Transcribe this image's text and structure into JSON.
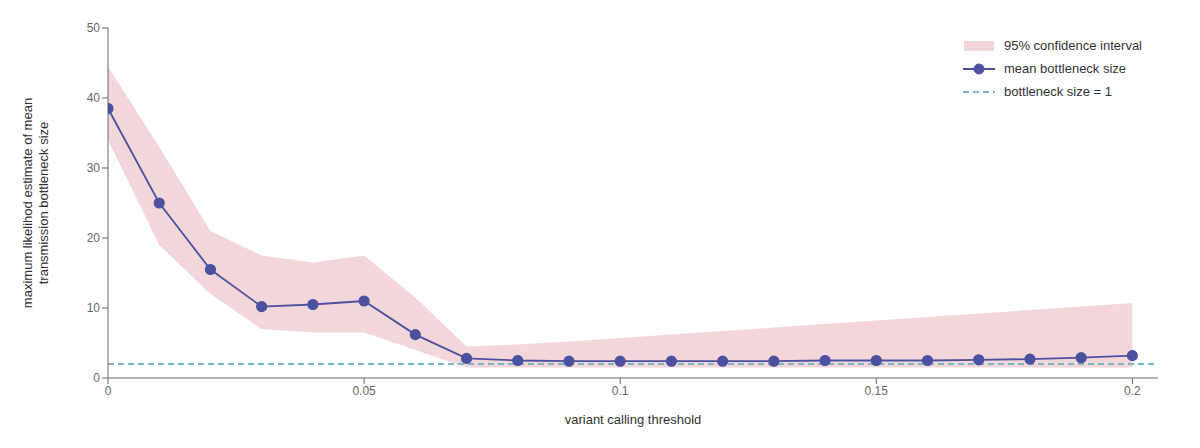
{
  "chart_data": {
    "type": "line",
    "xlabel": "variant calling threshold",
    "ylabel": "maximum likelihod estimate of mean\ntransmission bottleneck size",
    "x": [
      0.0,
      0.01,
      0.02,
      0.03,
      0.04,
      0.05,
      0.06,
      0.07,
      0.08,
      0.09,
      0.1,
      0.11,
      0.12,
      0.13,
      0.14,
      0.15,
      0.16,
      0.17,
      0.18,
      0.19,
      0.2
    ],
    "series": [
      {
        "name": "95% confidence interval",
        "type": "band",
        "color": "#e8b4bc",
        "lower": [
          34.0,
          19.0,
          12.0,
          7.0,
          6.5,
          6.5,
          4.0,
          1.5,
          1.5,
          1.5,
          1.5,
          1.5,
          1.5,
          1.5,
          1.5,
          1.5,
          1.5,
          1.5,
          1.5,
          1.5,
          1.5
        ],
        "upper": [
          44.5,
          33.0,
          21.0,
          17.5,
          16.5,
          17.5,
          11.5,
          4.5,
          4.8,
          5.2,
          5.7,
          6.2,
          6.7,
          7.2,
          7.7,
          8.2,
          8.7,
          9.2,
          9.7,
          10.2,
          10.7
        ]
      },
      {
        "name": "mean bottleneck size",
        "type": "line",
        "color": "#4a52a0",
        "marker": "circle",
        "line_style": "solid",
        "values": [
          38.5,
          25.0,
          15.5,
          10.2,
          10.5,
          11.0,
          6.2,
          2.8,
          2.5,
          2.4,
          2.4,
          2.4,
          2.4,
          2.4,
          2.5,
          2.5,
          2.5,
          2.6,
          2.7,
          2.9,
          3.2
        ]
      },
      {
        "name": "bottleneck size = 1",
        "type": "hline",
        "color": "#7ab8c0",
        "line_style": "dashed",
        "y": 2.0
      }
    ],
    "xlim": [
      0.0,
      0.205
    ],
    "ylim": [
      0,
      50
    ],
    "xticks": [
      0,
      0.05,
      0.1,
      0.15,
      0.2
    ],
    "yticks": [
      0,
      10,
      20,
      30,
      40,
      50
    ],
    "legend": "upper right"
  }
}
